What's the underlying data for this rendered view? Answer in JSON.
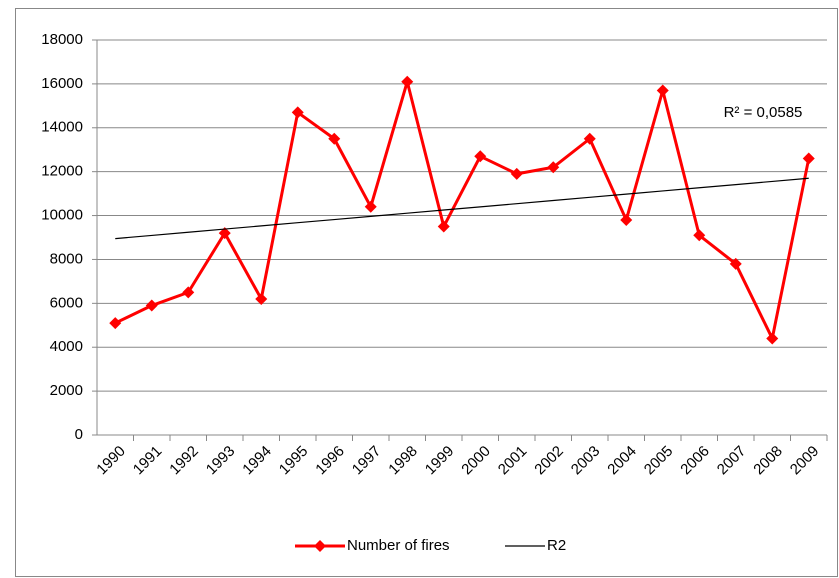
{
  "chart_data": {
    "type": "line",
    "categories": [
      "1990",
      "1991",
      "1992",
      "1993",
      "1994",
      "1995",
      "1996",
      "1997",
      "1998",
      "1999",
      "2000",
      "2001",
      "2002",
      "2003",
      "2004",
      "2005",
      "2006",
      "2007",
      "2008",
      "2009"
    ],
    "series": [
      {
        "name": "Number of fires",
        "color": "#ff0000",
        "values": [
          5100,
          5900,
          6500,
          9200,
          6200,
          14700,
          13500,
          10400,
          16100,
          9500,
          12700,
          11900,
          12200,
          13500,
          9800,
          15700,
          9100,
          7800,
          4400,
          12600
        ]
      },
      {
        "name": "R2",
        "color": "#000000",
        "values": [
          8950,
          9095,
          9240,
          9384,
          9529,
          9674,
          9818,
          9963,
          10108,
          10253,
          10397,
          10542,
          10687,
          10832,
          10976,
          11121,
          11266,
          11411,
          11555,
          11700
        ]
      }
    ],
    "annotation": "R² = 0,0585",
    "ylim": [
      0,
      18000
    ],
    "yticks": [
      0,
      2000,
      4000,
      6000,
      8000,
      10000,
      12000,
      14000,
      16000,
      18000
    ],
    "grid": true,
    "legend": "bottom"
  }
}
